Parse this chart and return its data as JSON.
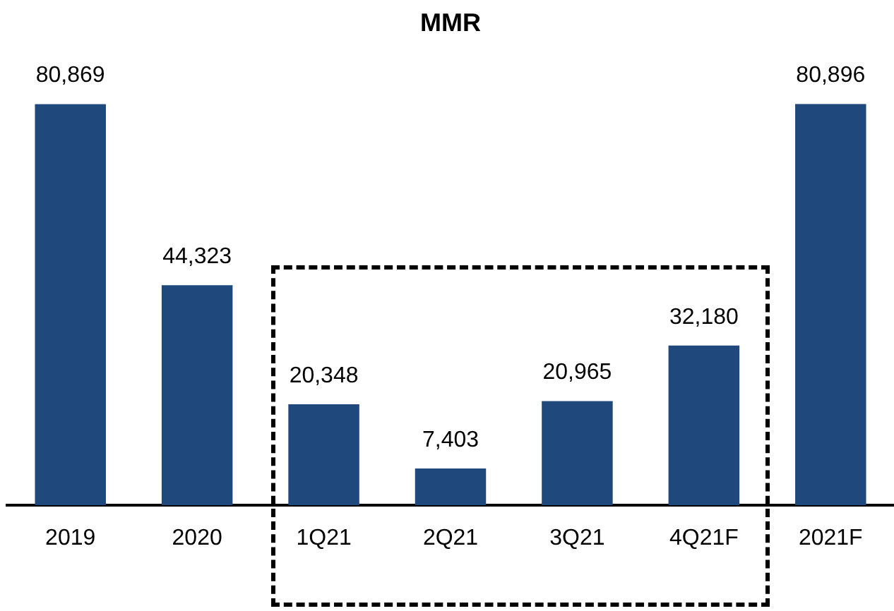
{
  "chart_data": {
    "type": "bar",
    "title": "MMR",
    "categories": [
      "2019",
      "2020",
      "1Q21",
      "2Q21",
      "3Q21",
      "4Q21F",
      "2021F"
    ],
    "values": [
      80869,
      44323,
      20348,
      7403,
      20965,
      32180,
      80896
    ],
    "value_labels": [
      "80,869",
      "44,323",
      "20,348",
      "7,403",
      "20,965",
      "32,180",
      "80,896"
    ],
    "color": "#1f497d",
    "grid": false,
    "legend": false
  }
}
